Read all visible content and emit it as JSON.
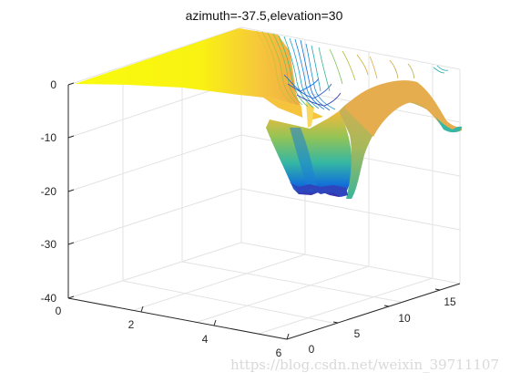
{
  "chart_data": {
    "type": "surface",
    "title": "azimuth=-37.5,elevation=30",
    "view": {
      "azimuth": -37.5,
      "elevation": 30
    },
    "xlim": [
      0,
      6
    ],
    "ylim": [
      0,
      17
    ],
    "zlim": [
      -40,
      0
    ],
    "x_ticks": [
      "0",
      "2",
      "4",
      "6"
    ],
    "y_ticks": [
      "0",
      "5",
      "10",
      "15"
    ],
    "z_ticks": [
      "0",
      "-10",
      "-20",
      "-30",
      "-40"
    ],
    "grid": "on",
    "colormap": "parula",
    "colors": {
      "high": "#f9fb0e",
      "mid": "#f5b93c",
      "low_mid": "#35b7a3",
      "low": "#1373d8",
      "lowest": "#3e26a8"
    },
    "has_contour_lines": true,
    "minimum_z": -22
  },
  "watermark": "https://blog.csdn.net/weixin_39711107"
}
